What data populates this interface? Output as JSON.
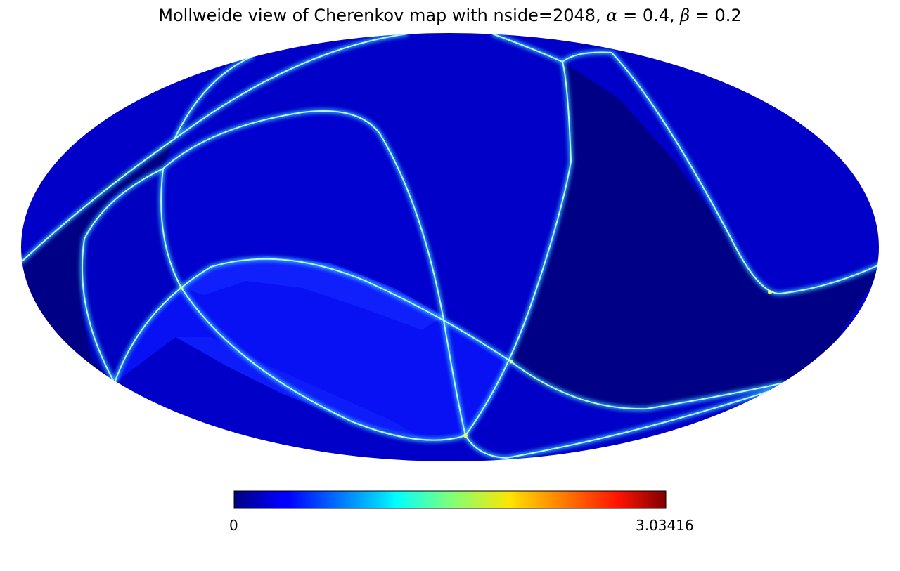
{
  "chart_data": {
    "type": "heatmap",
    "projection": "mollweide",
    "title": {
      "main": "Mollweide view of Cherenkov map with nside=2048, ",
      "alpha_symbol": "α",
      "alpha_eq": " = 0.4, ",
      "beta_symbol": "β",
      "beta_eq": " = 0.2"
    },
    "nside": 2048,
    "alpha": 0.4,
    "beta": 0.2,
    "colormap": "jet",
    "colorbar": {
      "min": 0,
      "max": 3.03416,
      "min_label": "0",
      "max_label": "3.03416",
      "orientation": "horizontal"
    },
    "colors": {
      "background": "#ffffff",
      "outside_region": "#000080",
      "region_fill": "#0000d8",
      "bright_fill": "#0a14ff",
      "ring_edge": "#7fe0ff"
    }
  }
}
